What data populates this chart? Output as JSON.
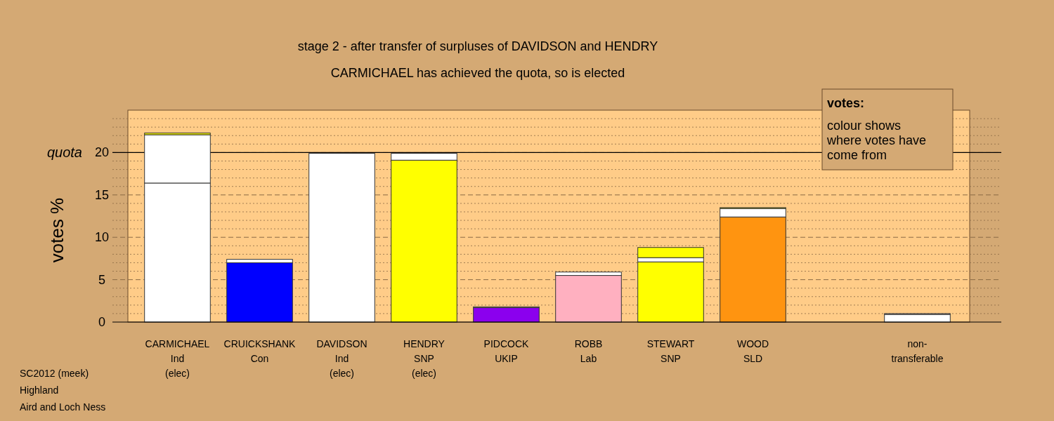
{
  "chart_data": {
    "type": "bar",
    "stacked": true,
    "title": "stage 2 - after transfer of surpluses of DAVIDSON and HENDRY",
    "subtitle": "CARMICHAEL has achieved the quota, so is elected",
    "ylabel": "votes %",
    "categories": [
      "CARMICHAEL\nInd\n(elec)",
      "CRUICKSHANK\nCon",
      "DAVIDSON\nInd\n(elec)",
      "HENDRY\nSNP\n(elec)",
      "PIDCOCK\nUKIP",
      "ROBB\nLab",
      "STEWART\nSNP",
      "WOOD\nSLD",
      null,
      "non-\ntransferable"
    ],
    "series": [
      {
        "colors": [
          "#ffffff",
          "#0000ff",
          "#ffffff",
          "#ffff00",
          "#8b00ee",
          "#ffb0c0",
          "#ffff00",
          "#ff9410",
          null,
          "#ffffff"
        ],
        "values": [
          16.4,
          7.0,
          19.9,
          19.1,
          1.7,
          5.5,
          7.1,
          12.4,
          null,
          0.9
        ]
      },
      {
        "color": "#ffffff",
        "values": [
          5.7,
          0.4,
          null,
          0.8,
          0.1,
          0.4,
          0.5,
          1.0,
          null,
          0.1
        ]
      },
      {
        "color": "#ffff00",
        "values": [
          0.2,
          null,
          null,
          null,
          null,
          null,
          1.2,
          0.1,
          null,
          null
        ]
      }
    ],
    "ylim": [
      0,
      25
    ],
    "yticks": [
      0,
      {
        "value": 1,
        "label": null
      },
      {
        "value": 2,
        "label": null
      },
      {
        "value": 3,
        "label": null
      },
      {
        "value": 4,
        "label": null
      },
      5,
      {
        "value": 6,
        "label": null
      },
      {
        "value": 7,
        "label": null
      },
      {
        "value": 8,
        "label": null
      },
      {
        "value": 9,
        "label": null
      },
      10,
      {
        "value": 11,
        "label": null
      },
      {
        "value": 12,
        "label": null
      },
      {
        "value": 13,
        "label": null
      },
      {
        "value": 14,
        "label": null
      },
      15,
      {
        "value": 16,
        "label": null
      },
      {
        "value": 17,
        "label": null
      },
      {
        "value": 18,
        "label": null
      },
      {
        "value": 19,
        "label": null
      },
      20,
      {
        "value": 21,
        "label": null
      },
      {
        "value": 22,
        "label": null
      },
      {
        "value": 23,
        "label": null
      },
      {
        "value": 24,
        "label": null
      }
    ],
    "grid": "y",
    "ref_lines": [
      {
        "axis": "y",
        "value": 20,
        "label": "quota",
        "color": "#000000",
        "line_style": "solid"
      }
    ],
    "legend_title": "votes:",
    "annotations": [
      "colour shows where votes have come from",
      "SC2012 (meek)",
      "Highland",
      "Aird and Loch Ness"
    ]
  }
}
